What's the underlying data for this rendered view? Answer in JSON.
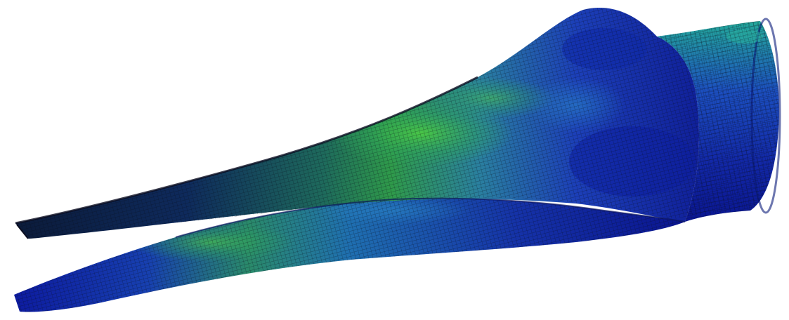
{
  "scene": {
    "subject": "fem-mesh-blade",
    "background_color": "#ffffff",
    "colormap": {
      "low": "#0a0f8c",
      "mid_low": "#1636b0",
      "mid": "#1f6fa8",
      "mid_high": "#2aa68a",
      "high": "#3fbf3a"
    },
    "mesh_line_color": "#0b0b1e"
  }
}
